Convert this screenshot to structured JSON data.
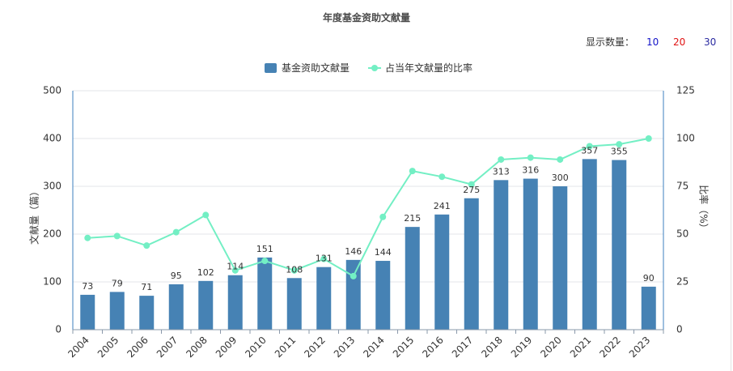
{
  "display_count": {
    "label": "显示数量：",
    "options": [
      {
        "label": "10",
        "color": "#1414c8"
      },
      {
        "label": "20",
        "color": "#e01414"
      },
      {
        "label": "30",
        "color": "#2a2aa0"
      }
    ]
  },
  "chart_data": {
    "type": "bar",
    "title": "年度基金资助文献量",
    "categories": [
      "2004",
      "2005",
      "2006",
      "2007",
      "2008",
      "2009",
      "2010",
      "2011",
      "2012",
      "2013",
      "2014",
      "2015",
      "2016",
      "2017",
      "2018",
      "2019",
      "2020",
      "2021",
      "2022",
      "2023"
    ],
    "series": [
      {
        "name": "基金资助文献量",
        "type": "bar",
        "axis": "left",
        "color": "#4682b4",
        "legend_icon": "bar-swatch-icon",
        "data_labels": true,
        "values": [
          73,
          79,
          71,
          95,
          102,
          114,
          151,
          108,
          131,
          146,
          144,
          215,
          241,
          275,
          313,
          316,
          300,
          357,
          355,
          90
        ]
      },
      {
        "name": "占当年文献量的比率",
        "type": "line",
        "axis": "right",
        "color": "#73efc4",
        "legend_icon": "line-marker-icon",
        "data_labels": false,
        "values": [
          48,
          49,
          44,
          51,
          60,
          31,
          36,
          31,
          37,
          28,
          59,
          83,
          80,
          76,
          89,
          90,
          89,
          96,
          97,
          100
        ]
      }
    ],
    "y_left": {
      "label": "文献量（篇）",
      "range": [
        0,
        500
      ],
      "ticks": [
        0,
        100,
        200,
        300,
        400,
        500
      ]
    },
    "y_right": {
      "label": "比率（%）",
      "range": [
        0,
        125
      ],
      "ticks": [
        0,
        25,
        50,
        75,
        100,
        125
      ]
    },
    "grid": true,
    "legend": "top-center"
  }
}
